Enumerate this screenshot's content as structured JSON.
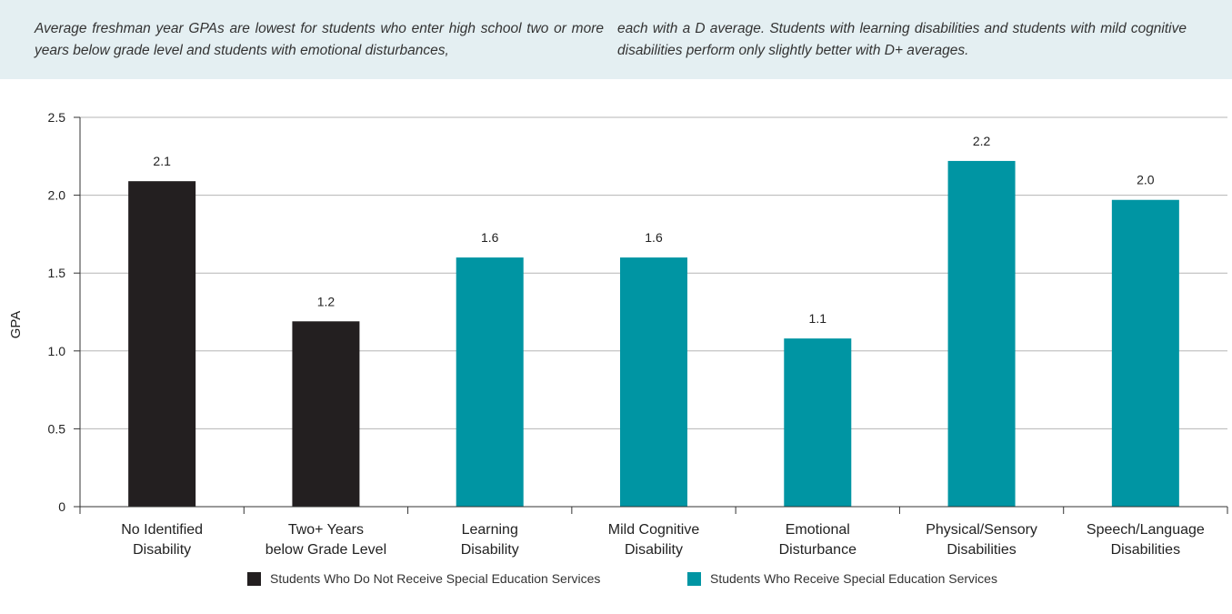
{
  "caption": {
    "left": "Average freshman year GPAs are lowest for students who enter high school two or more years below grade level and students with emotional disturbances,",
    "right": "each with a D average. Students with learning disabilities and students with mild cognitive disabilities perform only slightly better with  D+ averages."
  },
  "colors": {
    "non_sped": "#231f20",
    "sped": "#0095a3",
    "grid": "#b5b5b5",
    "caption_bg": "#e4eff2"
  },
  "legend": {
    "items": [
      {
        "label": "Students Who Do Not Receive Special Education Services",
        "color": "#231f20"
      },
      {
        "label": "Students Who Receive Special Education Services",
        "color": "#0095a3"
      }
    ]
  },
  "chart_data": {
    "type": "bar",
    "title": "",
    "xlabel": "",
    "ylabel": "GPA",
    "ylim": [
      0,
      2.5
    ],
    "yticks": [
      "0",
      "0.5",
      "1.0",
      "1.5",
      "2.0",
      "2.5"
    ],
    "grid": true,
    "legend_position": "bottom",
    "categories": [
      [
        "No Identified",
        "Disability"
      ],
      [
        "Two+ Years",
        "below Grade Level"
      ],
      [
        "Learning",
        "Disability"
      ],
      [
        "Mild Cognitive",
        "Disability"
      ],
      [
        "Emotional",
        "Disturbance"
      ],
      [
        "Physical/Sensory",
        "Disabilities"
      ],
      [
        "Speech/Language",
        "Disabilities"
      ]
    ],
    "values": [
      2.09,
      1.19,
      1.6,
      1.6,
      1.08,
      2.22,
      1.97
    ],
    "value_labels": [
      "2.1",
      "1.2",
      "1.6",
      "1.6",
      "1.1",
      "2.2",
      "2.0"
    ],
    "bar_groups": [
      "non_sped",
      "non_sped",
      "sped",
      "sped",
      "sped",
      "sped",
      "sped"
    ]
  }
}
